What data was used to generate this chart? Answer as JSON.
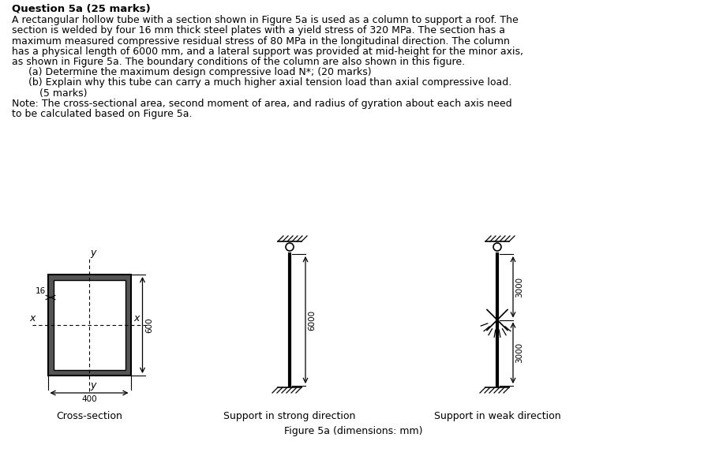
{
  "title": "Question 5a (25 marks)",
  "body_lines": [
    "A rectangular hollow tube with a section shown in Figure 5a is used as a column to support a roof. The",
    "section is welded by four 16 mm thick steel plates with a yield stress of 320 MPa. The section has a",
    "maximum measured compressive residual stress of 80 MPa in the longitudinal direction. The column",
    "has a physical length of 6000 mm, and a lateral support was provided at mid-height for the minor axis,",
    "as shown in Figure 5a. The boundary conditions of the column are also shown in this figure."
  ],
  "item_a": "(a) Determine the maximum design compressive load N*; (20 marks)",
  "item_b1": "(b) Explain why this tube can carry a much higher axial tension load than axial compressive load.",
  "item_b2": "    (5 marks)",
  "note1": "Note: The cross-sectional area, second moment of area, and radius of gyration about each axis need",
  "note2": "to be calculated based on Figure 5a.",
  "caption": "Figure 5a (dimensions: mm)",
  "label_cross": "Cross-section",
  "label_strong": "Support in strong direction",
  "label_weak": "Support in weak direction",
  "bg": "#ffffff",
  "fg": "#000000",
  "body_fontsize": 9.0,
  "title_fontsize": 9.5,
  "diagram_fontsize": 8.0,
  "label_fontsize": 9.0
}
